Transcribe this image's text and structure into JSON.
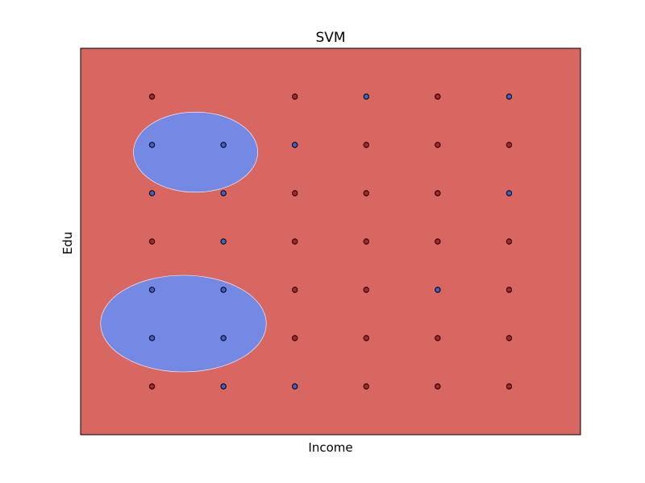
{
  "chart_data": {
    "type": "scatter",
    "title": "SVM",
    "xlabel": "Income",
    "ylabel": "Edu",
    "xticks_shown": false,
    "yticks_shown": false,
    "grid": false,
    "legend": "none",
    "xlim": [
      0,
      7
    ],
    "ylim": [
      0,
      8
    ],
    "colors": {
      "region_red": "#d96761",
      "region_blue": "#7489e4",
      "point_red": "#b5202a",
      "point_blue": "#3f5fc9",
      "point_edge": "#000000",
      "frame": "#000000"
    },
    "decision_regions": [
      {
        "class": "blue",
        "center": [
          1.61,
          5.85
        ],
        "rx": 0.87,
        "ry": 0.83
      },
      {
        "class": "blue",
        "center": [
          1.44,
          2.3
        ],
        "rx": 1.16,
        "ry": 1.0
      }
    ],
    "series": [
      {
        "class": "red",
        "points": [
          [
            1,
            7
          ],
          [
            3,
            7
          ],
          [
            5,
            7
          ],
          [
            4,
            6
          ],
          [
            5,
            6
          ],
          [
            6,
            6
          ],
          [
            3,
            5
          ],
          [
            4,
            5
          ],
          [
            5,
            5
          ],
          [
            1,
            4
          ],
          [
            3,
            4
          ],
          [
            4,
            4
          ],
          [
            5,
            4
          ],
          [
            6,
            4
          ],
          [
            3,
            3
          ],
          [
            4,
            3
          ],
          [
            6,
            3
          ],
          [
            3,
            2
          ],
          [
            4,
            2
          ],
          [
            5,
            2
          ],
          [
            6,
            2
          ],
          [
            1,
            1
          ],
          [
            4,
            1
          ],
          [
            5,
            1
          ],
          [
            6,
            1
          ]
        ]
      },
      {
        "class": "blue",
        "points": [
          [
            4,
            7
          ],
          [
            6,
            7
          ],
          [
            1,
            6
          ],
          [
            2,
            6
          ],
          [
            3,
            6
          ],
          [
            1,
            5
          ],
          [
            2,
            5
          ],
          [
            6,
            5
          ],
          [
            2,
            4
          ],
          [
            1,
            3
          ],
          [
            2,
            3
          ],
          [
            5,
            3
          ],
          [
            1,
            2
          ],
          [
            2,
            2
          ],
          [
            2,
            1
          ],
          [
            3,
            1
          ]
        ]
      }
    ]
  }
}
